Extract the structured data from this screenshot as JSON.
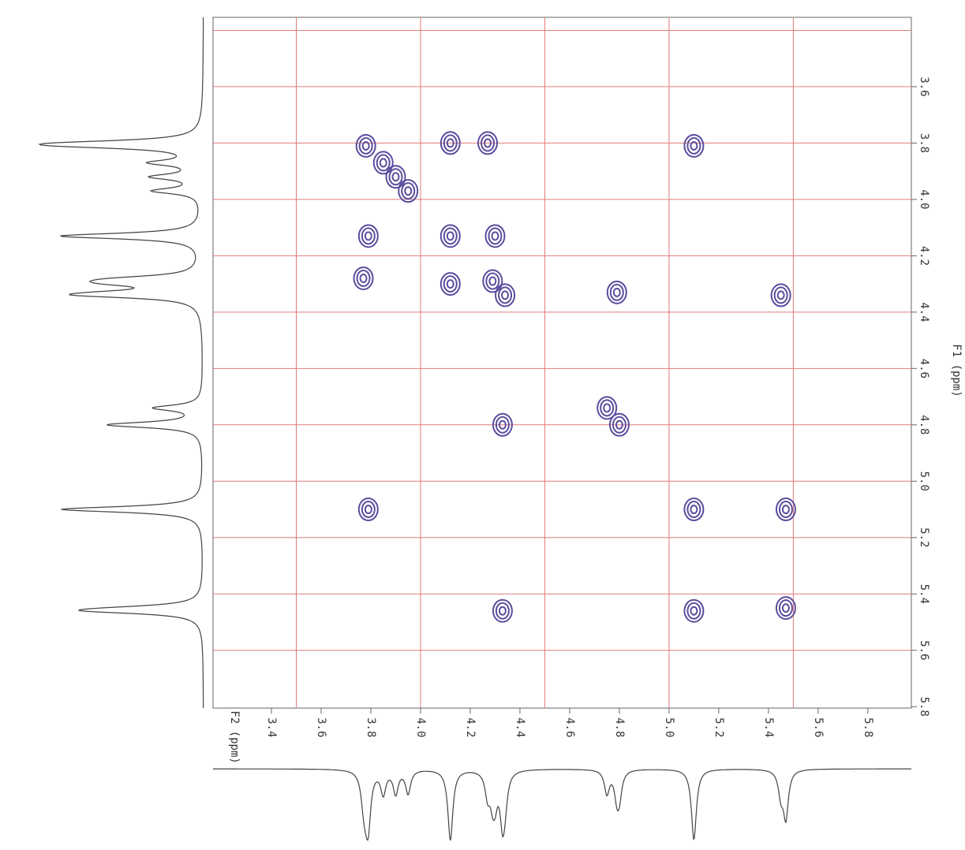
{
  "chart_data": {
    "type": "scatter",
    "x_label": "F2 (ppm)",
    "y_label": "F1 (ppm)",
    "xlim": [
      3.165,
      5.975
    ],
    "ylim": [
      3.354,
      5.805
    ],
    "xticks": [
      3.4,
      3.6,
      3.8,
      {
        "value": 4,
        "label": "4.0"
      },
      4.2,
      4.4,
      4.6,
      4.8,
      {
        "value": 5,
        "label": "5.0"
      },
      5.2,
      5.4,
      5.6,
      5.8
    ],
    "yticks": [
      3.6,
      3.8,
      {
        "value": 4,
        "label": "4.0"
      },
      4.2,
      4.4,
      4.6,
      4.8,
      {
        "value": 5,
        "label": "5.0"
      },
      5.2,
      5.4,
      5.6,
      5.8
    ],
    "xgrid": [
      3.5,
      4,
      4.5,
      5,
      5.5
    ],
    "ygrid": [
      3.4,
      3.6,
      3.8,
      4,
      4.2,
      4.4,
      4.6,
      4.8,
      5,
      5.2,
      5.4,
      5.6
    ],
    "grid": true,
    "grid_color": "#e07a7a",
    "color": "#5b4c9e",
    "x": [
      3.78,
      3.85,
      3.9,
      3.95,
      4.12,
      4.27,
      5.1,
      3.79,
      4.12,
      4.3,
      3.77,
      4.12,
      4.29,
      4.34,
      4.79,
      5.45,
      4.33,
      4.75,
      4.8,
      3.79,
      5.1,
      5.47,
      4.33,
      5.1,
      5.47
    ],
    "values": [
      3.81,
      3.87,
      3.92,
      3.97,
      3.8,
      3.8,
      3.81,
      4.13,
      4.13,
      4.13,
      4.28,
      4.3,
      4.29,
      4.34,
      4.33,
      4.34,
      4.8,
      4.74,
      4.8,
      5.1,
      5.1,
      5.1,
      5.46,
      5.46,
      5.45
    ]
  }
}
